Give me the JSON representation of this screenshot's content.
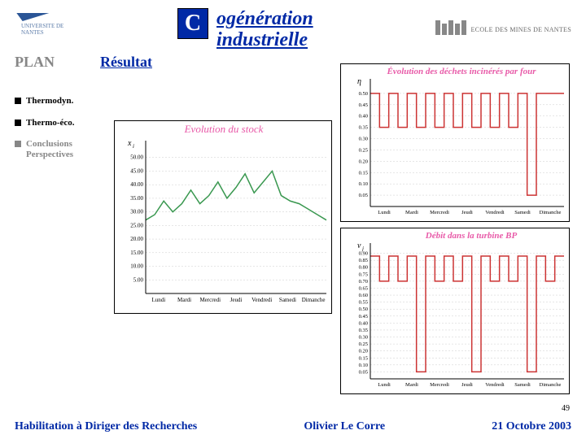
{
  "header": {
    "title_c": "C",
    "title_rest_l1": "ogénération",
    "title_rest_l2": "industrielle",
    "uni_text_l1": "UNIVERSITE DE",
    "uni_text_l2": "NANTES",
    "em_text": "ECOLE DES MINES DE NANTES"
  },
  "plan_label": "PLAN",
  "resultat": "Résultat",
  "sidebar": {
    "items": [
      {
        "label": "Thermodyn.",
        "gray": false
      },
      {
        "label": "Thermo-éco.",
        "gray": false
      },
      {
        "label": "Conclusions\nPerspectives",
        "gray": true
      }
    ]
  },
  "footer": {
    "left": "Habilitation à Diriger des Recherches",
    "mid": "Olivier Le Corre",
    "right": "21 Octobre 2003"
  },
  "pagenum": "49",
  "colors": {
    "blue": "#0029a6",
    "gray": "#878787",
    "pink": "#e85aa8",
    "green": "#3a9850",
    "red": "#cc3333",
    "grid": "#cccccc",
    "black": "#000000"
  },
  "charts": {
    "stock": {
      "type": "line",
      "title": "Evolution du stock",
      "title_fontsize": 13,
      "title_color": "#e85aa8",
      "y_symbol": "x_i",
      "series_color": "#3a9850",
      "line_width": 1.5,
      "ylim": [
        0,
        55
      ],
      "ytick_step": 5,
      "yticks": [
        "5.00",
        "10.00",
        "15.00",
        "20.00",
        "25.00",
        "30.00",
        "35.00",
        "40.00",
        "45.00",
        "50.00"
      ],
      "xticks": [
        "Lundi",
        "Mardi",
        "Mercredi",
        "Jeudi",
        "Vendredi",
        "Samedi",
        "Dimanche"
      ],
      "data": [
        27,
        29,
        34,
        30,
        33,
        38,
        33,
        36,
        41,
        35,
        39,
        44,
        37,
        41,
        45,
        36,
        34,
        33,
        31,
        29,
        27
      ]
    },
    "dechets": {
      "type": "line-step",
      "title": "Évolution des déchets incinérés par four",
      "title_fontsize": 11,
      "title_color": "#e85aa8",
      "title_weight": "bold",
      "y_symbol": "η",
      "series_color": "#cc3333",
      "line_width": 1.5,
      "ylim": [
        0,
        0.55
      ],
      "ytick_step": 0.05,
      "yticks": [
        "0.05",
        "0.10",
        "0.15",
        "0.20",
        "0.25",
        "0.30",
        "0.35",
        "0.40",
        "0.45",
        "0.50"
      ],
      "xticks": [
        "Lundi",
        "Mardi",
        "Mercredi",
        "Jeudi",
        "Vendredi",
        "Samedi",
        "Dimanche"
      ],
      "segments": [
        [
          0.5,
          0.35,
          0.5,
          0.35,
          0.5,
          0.35,
          0.5,
          0.35,
          0.5,
          0.35,
          0.5,
          0.35,
          0.5,
          0.35,
          0.5,
          0.35,
          0.5,
          0.05,
          0.5,
          0.5,
          0.5
        ]
      ]
    },
    "turbine": {
      "type": "line-step",
      "title": "Débit dans la turbine BP",
      "title_fontsize": 11,
      "title_color": "#e85aa8",
      "title_weight": "bold",
      "y_symbol": "v_j",
      "series_color": "#cc3333",
      "line_width": 1.5,
      "ylim": [
        0,
        0.95
      ],
      "ytick_step": 0.05,
      "yticks": [
        "0.05",
        "0.10",
        "0.15",
        "0.20",
        "0.25",
        "0.30",
        "0.35",
        "0.40",
        "0.45",
        "0.50",
        "0.55",
        "0.60",
        "0.65",
        "0.70",
        "0.75",
        "0.80",
        "0.85",
        "0.90"
      ],
      "xticks": [
        "Lundi",
        "Mardi",
        "Mercredi",
        "Jeudi",
        "Vendredi",
        "Samedi",
        "Dimanche"
      ],
      "segments": [
        [
          0.88,
          0.7,
          0.88,
          0.7,
          0.88,
          0.05,
          0.88,
          0.7,
          0.88,
          0.7,
          0.88,
          0.05,
          0.88,
          0.7,
          0.88,
          0.7,
          0.88,
          0.05,
          0.88,
          0.7,
          0.88
        ]
      ]
    }
  }
}
